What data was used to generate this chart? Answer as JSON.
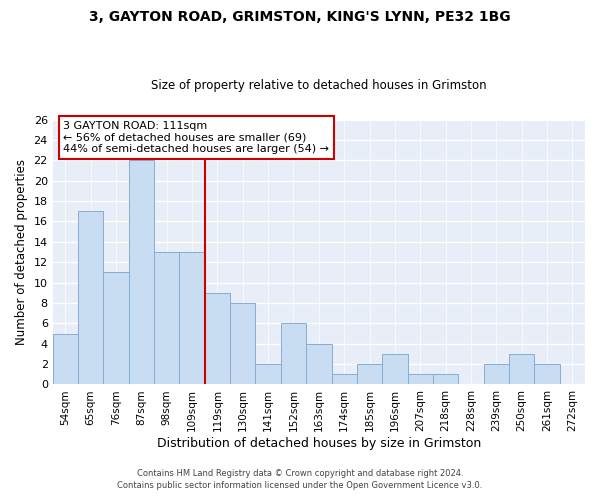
{
  "title1": "3, GAYTON ROAD, GRIMSTON, KING'S LYNN, PE32 1BG",
  "title2": "Size of property relative to detached houses in Grimston",
  "xlabel": "Distribution of detached houses by size in Grimston",
  "ylabel": "Number of detached properties",
  "categories": [
    "54sqm",
    "65sqm",
    "76sqm",
    "87sqm",
    "98sqm",
    "109sqm",
    "119sqm",
    "130sqm",
    "141sqm",
    "152sqm",
    "163sqm",
    "174sqm",
    "185sqm",
    "196sqm",
    "207sqm",
    "218sqm",
    "228sqm",
    "239sqm",
    "250sqm",
    "261sqm",
    "272sqm"
  ],
  "values": [
    5,
    17,
    11,
    22,
    13,
    13,
    9,
    8,
    2,
    6,
    4,
    1,
    2,
    3,
    1,
    1,
    0,
    2,
    3,
    2,
    0
  ],
  "bar_color": "#c9ddf2",
  "bar_edge_color": "#85aed4",
  "ref_bar_index": 5,
  "reference_line_label": "3 GAYTON ROAD: 111sqm",
  "annotation_line1": "← 56% of detached houses are smaller (69)",
  "annotation_line2": "44% of semi-detached houses are larger (54) →",
  "annotation_box_color": "#cc0000",
  "ylim": [
    0,
    26
  ],
  "yticks": [
    0,
    2,
    4,
    6,
    8,
    10,
    12,
    14,
    16,
    18,
    20,
    22,
    24,
    26
  ],
  "footer1": "Contains HM Land Registry data © Crown copyright and database right 2024.",
  "footer2": "Contains public sector information licensed under the Open Government Licence v3.0.",
  "fig_bg_color": "#ffffff",
  "plot_bg_color": "#e8eef7"
}
